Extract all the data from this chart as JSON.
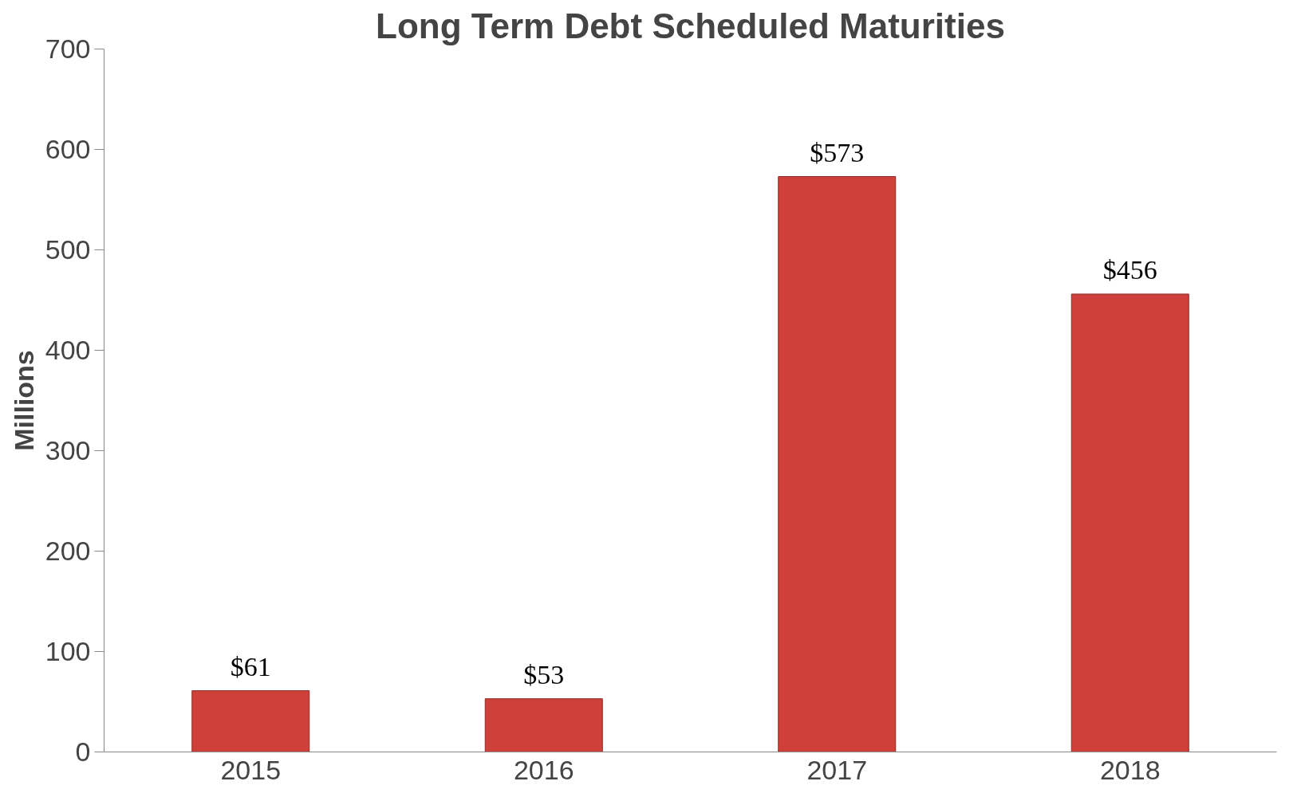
{
  "chart_data": {
    "type": "bar",
    "title": "Long Term Debt Scheduled Maturities",
    "ylabel": "Millions",
    "categories": [
      "2015",
      "2016",
      "2017",
      "2018"
    ],
    "values": [
      61,
      53,
      573,
      456
    ],
    "value_labels": [
      "$61",
      "$53",
      "$573",
      "$456"
    ],
    "color": "#d0403b",
    "ylim": [
      0,
      700
    ],
    "yticks": [
      0,
      100,
      200,
      300,
      400,
      500,
      600,
      700
    ],
    "grid": false
  }
}
